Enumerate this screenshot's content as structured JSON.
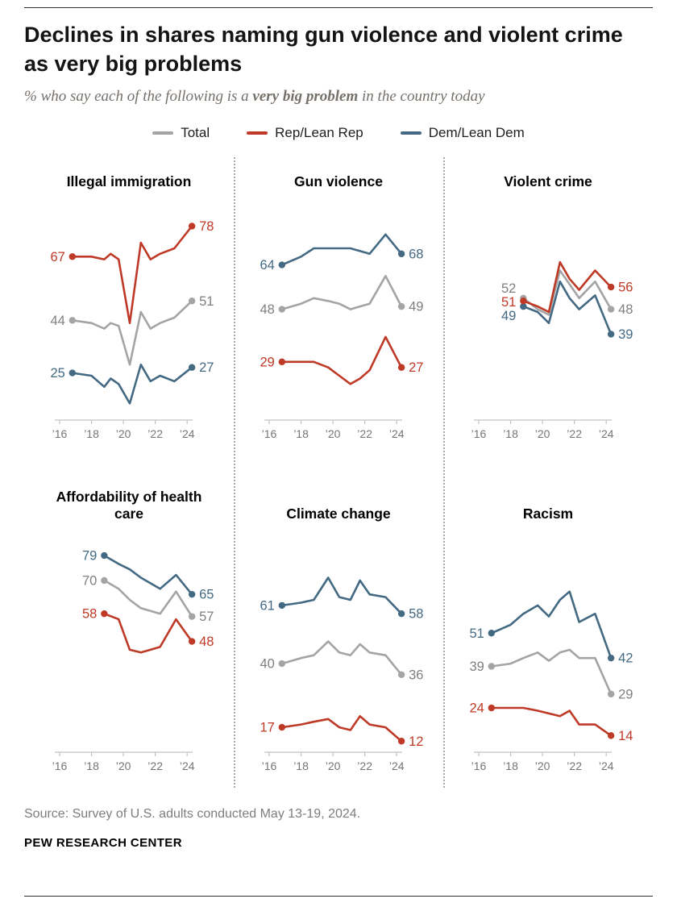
{
  "header": {
    "title": "Declines in shares naming gun violence and violent crime as very big problems",
    "subtitle_prefix": "% who say each of the following is a ",
    "subtitle_bold": "very big problem",
    "subtitle_suffix": " in the country today"
  },
  "legend": [
    {
      "label": "Total",
      "color_key": "total"
    },
    {
      "label": "Rep/Lean Rep",
      "color_key": "rep"
    },
    {
      "label": "Dem/Lean Dem",
      "color_key": "dem"
    }
  ],
  "colors": {
    "total": "#a4a4a4",
    "total_label": "#7f7f7f",
    "rep": "#bf3927",
    "dem": "#436983",
    "axis": "#c2c2c2",
    "tick_label": "#757575"
  },
  "footer": {
    "source": "Source: Survey of U.S. adults conducted May 13-19, 2024.",
    "brand": "PEW RESEARCH CENTER"
  },
  "chart_data": [
    {
      "type": "line",
      "title": "Illegal immigration",
      "x_domain": [
        2015.9,
        2024.9
      ],
      "y_domain": [
        8,
        86
      ],
      "x_ticks": [
        {
          "label": "’16",
          "year": 2016
        },
        {
          "label": "’18",
          "year": 2018
        },
        {
          "label": "’20",
          "year": 2020
        },
        {
          "label": "’22",
          "year": 2022
        },
        {
          "label": "’24",
          "year": 2024
        }
      ],
      "series": [
        {
          "name": "Total",
          "color_key": "total",
          "x": [
            2016.8,
            2018,
            2018.8,
            2019.2,
            2019.7,
            2020.4,
            2021.1,
            2021.7,
            2022.3,
            2023.2,
            2024.3
          ],
          "y": [
            44,
            43,
            41,
            43,
            42,
            28,
            47,
            41,
            43,
            45,
            51
          ]
        },
        {
          "name": "Dem/Lean Dem",
          "color_key": "dem",
          "x": [
            2016.8,
            2018,
            2018.8,
            2019.2,
            2019.7,
            2020.4,
            2021.1,
            2021.7,
            2022.3,
            2023.2,
            2024.3
          ],
          "y": [
            25,
            24,
            20,
            23,
            21,
            14,
            28,
            22,
            24,
            22,
            27
          ]
        },
        {
          "name": "Rep/Lean Rep",
          "color_key": "rep",
          "x": [
            2016.8,
            2018,
            2018.8,
            2019.2,
            2019.7,
            2020.4,
            2021.1,
            2021.7,
            2022.3,
            2023.2,
            2024.3
          ],
          "y": [
            67,
            67,
            66,
            68,
            66,
            43,
            72,
            66,
            68,
            70,
            78
          ]
        }
      ]
    },
    {
      "type": "line",
      "title": "Gun violence",
      "x_domain": [
        2015.9,
        2024.9
      ],
      "y_domain": [
        8,
        86
      ],
      "x_ticks": [
        {
          "label": "’16",
          "year": 2016
        },
        {
          "label": "’18",
          "year": 2018
        },
        {
          "label": "’20",
          "year": 2020
        },
        {
          "label": "’22",
          "year": 2022
        },
        {
          "label": "’24",
          "year": 2024
        }
      ],
      "series": [
        {
          "name": "Total",
          "color_key": "total",
          "x": [
            2016.8,
            2018,
            2018.8,
            2019.7,
            2020.4,
            2021.1,
            2021.7,
            2022.3,
            2023.3,
            2024.3
          ],
          "y": [
            48,
            50,
            52,
            51,
            50,
            48,
            49,
            50,
            60,
            49
          ]
        },
        {
          "name": "Dem/Lean Dem",
          "color_key": "dem",
          "x": [
            2016.8,
            2018,
            2018.8,
            2019.7,
            2020.4,
            2021.1,
            2021.7,
            2022.3,
            2023.3,
            2024.3
          ],
          "y": [
            64,
            67,
            70,
            70,
            70,
            70,
            69,
            68,
            75,
            68
          ]
        },
        {
          "name": "Rep/Lean Rep",
          "color_key": "rep",
          "x": [
            2016.8,
            2018,
            2018.8,
            2019.7,
            2020.4,
            2021.1,
            2021.7,
            2022.3,
            2023.3,
            2024.3
          ],
          "y": [
            29,
            29,
            29,
            27,
            24,
            21,
            23,
            26,
            38,
            27
          ]
        }
      ]
    },
    {
      "type": "line",
      "title": "Violent crime",
      "x_domain": [
        2015.9,
        2024.9
      ],
      "y_domain": [
        8,
        86
      ],
      "x_ticks": [
        {
          "label": "’16",
          "year": 2016
        },
        {
          "label": "’18",
          "year": 2018
        },
        {
          "label": "’20",
          "year": 2020
        },
        {
          "label": "’22",
          "year": 2022
        },
        {
          "label": "’24",
          "year": 2024
        }
      ],
      "series": [
        {
          "name": "Total",
          "color_key": "total",
          "x": [
            2018.8,
            2019.7,
            2020.4,
            2021.1,
            2021.7,
            2022.3,
            2023.3,
            2024.3
          ],
          "y": [
            52,
            48,
            46,
            62,
            57,
            52,
            58,
            48
          ]
        },
        {
          "name": "Dem/Lean Dem",
          "color_key": "dem",
          "x": [
            2018.8,
            2019.7,
            2020.4,
            2021.1,
            2021.7,
            2022.3,
            2023.3,
            2024.3
          ],
          "y": [
            49,
            47,
            43,
            58,
            52,
            48,
            53,
            39
          ]
        },
        {
          "name": "Rep/Lean Rep",
          "color_key": "rep",
          "x": [
            2018.8,
            2019.7,
            2020.4,
            2021.1,
            2021.7,
            2022.3,
            2023.3,
            2024.3
          ],
          "y": [
            51,
            49,
            47,
            65,
            59,
            55,
            62,
            56
          ]
        }
      ]
    },
    {
      "type": "line",
      "title": "Affordability of health care",
      "x_domain": [
        2015.9,
        2024.9
      ],
      "y_domain": [
        8,
        86
      ],
      "x_ticks": [
        {
          "label": "’16",
          "year": 2016
        },
        {
          "label": "’18",
          "year": 2018
        },
        {
          "label": "’20",
          "year": 2020
        },
        {
          "label": "’22",
          "year": 2022
        },
        {
          "label": "’24",
          "year": 2024
        }
      ],
      "series": [
        {
          "name": "Total",
          "color_key": "total",
          "x": [
            2018.8,
            2019.7,
            2020.4,
            2021.1,
            2021.7,
            2022.3,
            2023.3,
            2024.3
          ],
          "y": [
            70,
            67,
            63,
            60,
            59,
            58,
            66,
            57
          ]
        },
        {
          "name": "Dem/Lean Dem",
          "color_key": "dem",
          "x": [
            2018.8,
            2019.7,
            2020.4,
            2021.1,
            2021.7,
            2022.3,
            2023.3,
            2024.3
          ],
          "y": [
            79,
            76,
            74,
            71,
            69,
            67,
            72,
            65
          ]
        },
        {
          "name": "Rep/Lean Rep",
          "color_key": "rep",
          "x": [
            2018.8,
            2019.7,
            2020.4,
            2021.1,
            2021.7,
            2022.3,
            2023.3,
            2024.3
          ],
          "y": [
            58,
            56,
            45,
            44,
            45,
            46,
            56,
            48
          ]
        }
      ]
    },
    {
      "type": "line",
      "title": "Climate change",
      "x_domain": [
        2015.9,
        2024.9
      ],
      "y_domain": [
        8,
        86
      ],
      "x_ticks": [
        {
          "label": "’16",
          "year": 2016
        },
        {
          "label": "’18",
          "year": 2018
        },
        {
          "label": "’20",
          "year": 2020
        },
        {
          "label": "’22",
          "year": 2022
        },
        {
          "label": "’24",
          "year": 2024
        }
      ],
      "series": [
        {
          "name": "Total",
          "color_key": "total",
          "x": [
            2016.8,
            2018,
            2018.8,
            2019.7,
            2020.4,
            2021.1,
            2021.7,
            2022.3,
            2023.3,
            2024.3
          ],
          "y": [
            40,
            42,
            43,
            48,
            44,
            43,
            47,
            44,
            43,
            36
          ]
        },
        {
          "name": "Dem/Lean Dem",
          "color_key": "dem",
          "x": [
            2016.8,
            2018,
            2018.8,
            2019.7,
            2020.4,
            2021.1,
            2021.7,
            2022.3,
            2023.3,
            2024.3
          ],
          "y": [
            61,
            62,
            63,
            71,
            64,
            63,
            70,
            65,
            64,
            58
          ]
        },
        {
          "name": "Rep/Lean Rep",
          "color_key": "rep",
          "x": [
            2016.8,
            2018,
            2018.8,
            2019.7,
            2020.4,
            2021.1,
            2021.7,
            2022.3,
            2023.3,
            2024.3
          ],
          "y": [
            17,
            18,
            19,
            20,
            17,
            16,
            21,
            18,
            17,
            12
          ]
        }
      ]
    },
    {
      "type": "line",
      "title": "Racism",
      "x_domain": [
        2015.9,
        2024.9
      ],
      "y_domain": [
        8,
        86
      ],
      "x_ticks": [
        {
          "label": "’16",
          "year": 2016
        },
        {
          "label": "’18",
          "year": 2018
        },
        {
          "label": "’20",
          "year": 2020
        },
        {
          "label": "’22",
          "year": 2022
        },
        {
          "label": "’24",
          "year": 2024
        }
      ],
      "series": [
        {
          "name": "Total",
          "color_key": "total",
          "x": [
            2016.8,
            2018,
            2018.8,
            2019.7,
            2020.4,
            2021.1,
            2021.7,
            2022.3,
            2023.3,
            2024.3
          ],
          "y": [
            39,
            40,
            42,
            44,
            41,
            44,
            45,
            42,
            42,
            29
          ]
        },
        {
          "name": "Dem/Lean Dem",
          "color_key": "dem",
          "x": [
            2016.8,
            2018,
            2018.8,
            2019.7,
            2020.4,
            2021.1,
            2021.7,
            2022.3,
            2023.3,
            2024.3
          ],
          "y": [
            51,
            54,
            58,
            61,
            57,
            63,
            66,
            55,
            58,
            42
          ]
        },
        {
          "name": "Rep/Lean Rep",
          "color_key": "rep",
          "x": [
            2016.8,
            2018,
            2018.8,
            2019.7,
            2020.4,
            2021.1,
            2021.7,
            2022.3,
            2023.3,
            2024.3
          ],
          "y": [
            24,
            24,
            24,
            23,
            22,
            21,
            23,
            18,
            18,
            14
          ]
        }
      ]
    }
  ]
}
